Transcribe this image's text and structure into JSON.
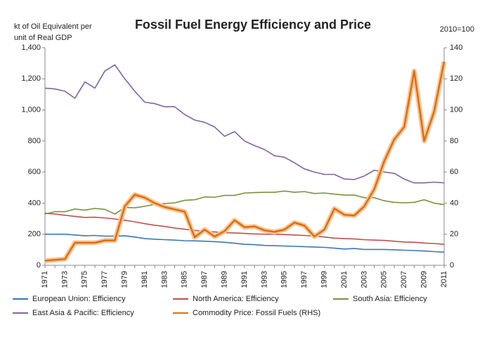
{
  "chart_data": {
    "type": "line",
    "title": "Fossil Fuel Energy Efficiency and Price",
    "ylabel": [
      "kt of Oil Equivalent per",
      "unit of Real GDP"
    ],
    "y2label": "2010=100",
    "categories": [
      "1971",
      null,
      "1973",
      null,
      "1975",
      null,
      "1977",
      null,
      "1979",
      null,
      "1981",
      null,
      "1983",
      null,
      "1985",
      null,
      "1987",
      null,
      "1989",
      null,
      "1991",
      null,
      "1993",
      null,
      "1995",
      null,
      "1997",
      null,
      "1999",
      null,
      "2001",
      null,
      "2003",
      null,
      "2005",
      null,
      "2007",
      null,
      "2009",
      null,
      "2011"
    ],
    "ylim": [
      0,
      1400
    ],
    "yticks": [
      0,
      200,
      400,
      600,
      800,
      {
        "value": 1000,
        "label": "1,000"
      },
      {
        "value": 1200,
        "label": "1,200"
      },
      {
        "value": 1400,
        "label": "1,400"
      }
    ],
    "y2lim": [
      0,
      140
    ],
    "y2ticks": [
      0,
      20,
      40,
      60,
      80,
      100,
      120,
      140
    ],
    "grid": false,
    "legend": "bottom",
    "series": [
      {
        "name": "European Union: Efficiency",
        "color": "#3a78b8",
        "values": [
          200,
          200,
          200,
          195,
          190,
          192,
          188,
          188,
          190,
          182,
          172,
          168,
          165,
          162,
          158,
          157,
          155,
          152,
          148,
          142,
          135,
          133,
          128,
          126,
          124,
          122,
          120,
          118,
          115,
          110,
          105,
          108,
          102,
          102,
          102,
          100,
          97,
          95,
          92,
          88,
          85
        ]
      },
      {
        "name": "North America: Efficiency",
        "color": "#c0504d",
        "values": [
          335,
          330,
          322,
          315,
          308,
          310,
          305,
          298,
          290,
          280,
          268,
          258,
          250,
          240,
          232,
          225,
          218,
          215,
          210,
          208,
          205,
          202,
          200,
          200,
          198,
          195,
          192,
          188,
          182,
          175,
          172,
          170,
          165,
          162,
          160,
          155,
          150,
          148,
          143,
          140,
          135
        ]
      },
      {
        "name": "South Asia: Efficiency",
        "color": "#77933c",
        "values": [
          330,
          345,
          345,
          362,
          355,
          366,
          360,
          330,
          372,
          370,
          380,
          392,
          398,
          402,
          418,
          422,
          440,
          438,
          450,
          450,
          465,
          468,
          470,
          470,
          478,
          470,
          474,
          462,
          465,
          458,
          452,
          452,
          435,
          435,
          415,
          405,
          402,
          405,
          422,
          400,
          390
        ]
      },
      {
        "name": "East Asia & Pacific: Efficiency",
        "color": "#8064a2",
        "values": [
          1140,
          1135,
          1120,
          1075,
          1180,
          1140,
          1250,
          1290,
          1200,
          1120,
          1050,
          1040,
          1020,
          1020,
          970,
          935,
          920,
          890,
          830,
          860,
          800,
          770,
          745,
          705,
          695,
          660,
          620,
          600,
          585,
          585,
          555,
          552,
          575,
          612,
          600,
          592,
          555,
          530,
          530,
          535,
          530
        ]
      },
      {
        "name": "Commodity Price: Fossil Fuels (RHS)",
        "color": "#e46c0a",
        "axis": "y2",
        "values": [
          3,
          3.5,
          4,
          14.5,
          14.5,
          14.5,
          16,
          16,
          38,
          45.5,
          43.5,
          40,
          37.5,
          36,
          34.5,
          18,
          23,
          18.5,
          22,
          29,
          24.5,
          25,
          22.5,
          21.5,
          23,
          27.5,
          25.5,
          18.5,
          23,
          36.5,
          32.5,
          32,
          38,
          49,
          67,
          81,
          89,
          125,
          80,
          99,
          131
        ]
      }
    ]
  }
}
